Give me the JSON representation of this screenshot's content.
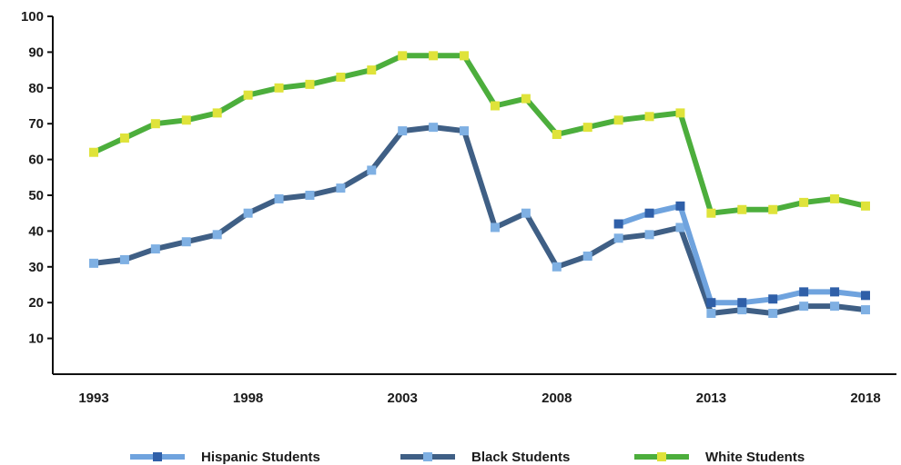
{
  "chart_data": {
    "type": "line",
    "title": "",
    "xlabel": "",
    "ylabel": "",
    "xlim": [
      1993,
      2018
    ],
    "ylim": [
      0,
      100
    ],
    "x_ticks": [
      "1993",
      "1998",
      "2003",
      "2008",
      "2013",
      "2018"
    ],
    "y_ticks": [
      "10",
      "20",
      "30",
      "40",
      "50",
      "60",
      "70",
      "80",
      "90",
      "100"
    ],
    "grid": false,
    "legend_position": "bottom",
    "series": [
      {
        "name": "Hispanic Students",
        "line_color": "#6fa3de",
        "marker_color": "#2f5fa8",
        "x": [
          2010,
          2011,
          2012,
          2013,
          2014,
          2015,
          2016,
          2017,
          2018
        ],
        "y": [
          42,
          45,
          47,
          20,
          20,
          21,
          23,
          23,
          22
        ]
      },
      {
        "name": "Black Students",
        "line_color": "#3f5f85",
        "marker_color": "#7fb0e3",
        "x": [
          1993,
          1994,
          1995,
          1996,
          1997,
          1998,
          1999,
          2000,
          2001,
          2002,
          2003,
          2004,
          2005,
          2006,
          2007,
          2008,
          2009,
          2010,
          2011,
          2012,
          2013,
          2014,
          2015,
          2016,
          2017,
          2018
        ],
        "y": [
          31,
          32,
          35,
          37,
          39,
          45,
          49,
          50,
          52,
          57,
          68,
          69,
          68,
          41,
          45,
          30,
          33,
          38,
          39,
          41,
          17,
          18,
          17,
          19,
          19,
          18
        ]
      },
      {
        "name": "White Students",
        "line_color": "#4cae3c",
        "marker_color": "#dfe33a",
        "x": [
          1993,
          1994,
          1995,
          1996,
          1997,
          1998,
          1999,
          2000,
          2001,
          2002,
          2003,
          2004,
          2005,
          2006,
          2007,
          2008,
          2009,
          2010,
          2011,
          2012,
          2013,
          2014,
          2015,
          2016,
          2017,
          2018
        ],
        "y": [
          62,
          66,
          70,
          71,
          73,
          78,
          80,
          81,
          83,
          85,
          89,
          89,
          89,
          75,
          77,
          67,
          69,
          71,
          72,
          73,
          45,
          46,
          46,
          48,
          49,
          47
        ]
      }
    ]
  }
}
